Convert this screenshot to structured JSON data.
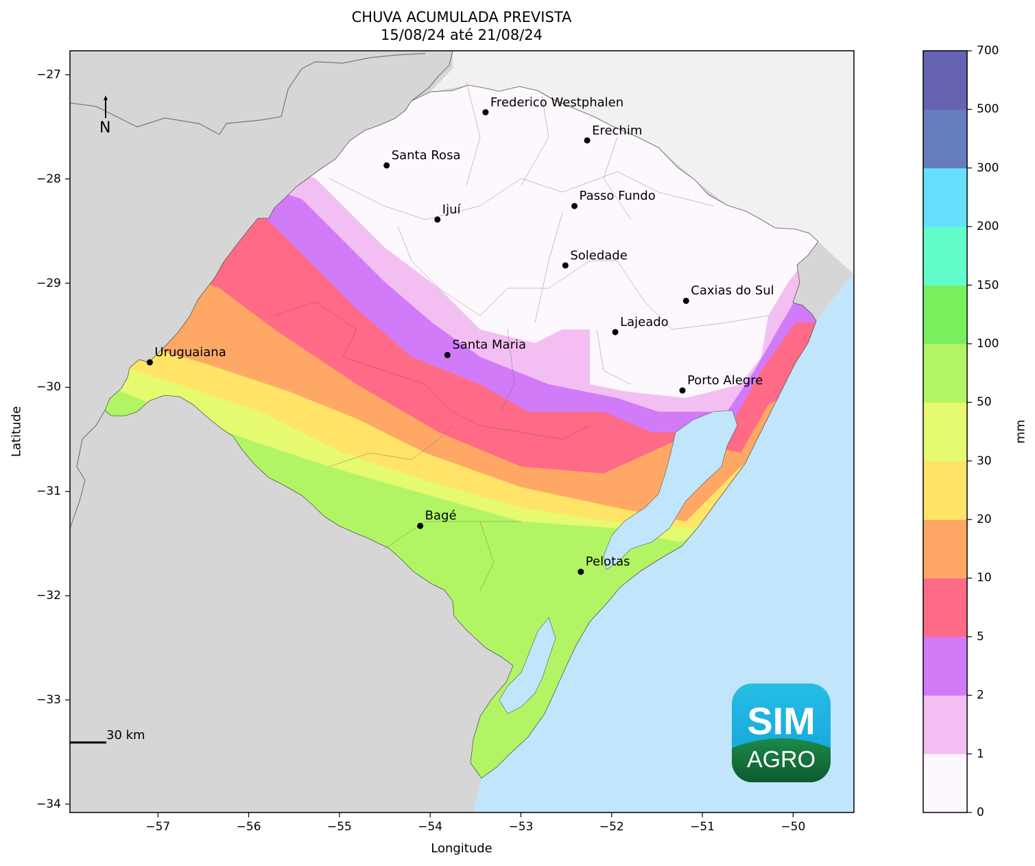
{
  "title": {
    "line1": "CHUVA ACUMULADA PREVISTA",
    "line2": "15/08/24 até 21/08/24"
  },
  "axes": {
    "xlabel": "Longitude",
    "ylabel": "Latitude",
    "xticks": [
      "−57",
      "−56",
      "−55",
      "−54",
      "−53",
      "−52",
      "−51",
      "−50"
    ],
    "yticks": [
      "−27",
      "−28",
      "−29",
      "−30",
      "−31",
      "−32",
      "−33",
      "−34"
    ],
    "xlim": [
      -57.97,
      -49.33
    ],
    "ylim": [
      -34.08,
      -26.77
    ]
  },
  "colorbar": {
    "label": "mm",
    "ticks": [
      "0",
      "1",
      "2",
      "5",
      "10",
      "20",
      "30",
      "50",
      "100",
      "150",
      "200",
      "300",
      "500",
      "700"
    ],
    "colors": [
      "#fdf8fd",
      "#f3bff3",
      "#d17bf9",
      "#ff6a87",
      "#ffa865",
      "#ffe467",
      "#e6fa70",
      "#b1f565",
      "#7aef5e",
      "#62fdcb",
      "#66dffe",
      "#657cbd",
      "#6664b2"
    ]
  },
  "cities": [
    {
      "name": "Frederico Westphalen",
      "lon": -53.39,
      "lat": -27.36
    },
    {
      "name": "Erechim",
      "lon": -52.27,
      "lat": -27.63
    },
    {
      "name": "Santa Rosa",
      "lon": -54.48,
      "lat": -27.87
    },
    {
      "name": "Passo Fundo",
      "lon": -52.41,
      "lat": -28.26
    },
    {
      "name": "Ijuí",
      "lon": -53.92,
      "lat": -28.39
    },
    {
      "name": "Soledade",
      "lon": -52.51,
      "lat": -28.83
    },
    {
      "name": "Caxias do Sul",
      "lon": -51.18,
      "lat": -29.17
    },
    {
      "name": "Lajeado",
      "lon": -51.96,
      "lat": -29.47
    },
    {
      "name": "Uruguaiana",
      "lon": -57.09,
      "lat": -29.76
    },
    {
      "name": "Santa Maria",
      "lon": -53.81,
      "lat": -29.69
    },
    {
      "name": "Porto Alegre",
      "lon": -51.22,
      "lat": -30.03
    },
    {
      "name": "Bagé",
      "lon": -54.11,
      "lat": -31.33
    },
    {
      "name": "Pelotas",
      "lon": -52.34,
      "lat": -31.77
    }
  ],
  "compass": {
    "label": "N"
  },
  "scale_bar": {
    "label": "30 km"
  },
  "logo": {
    "line1": "SIM",
    "line2": "AGRO"
  },
  "colors": {
    "land_outside": "#d6d6d6",
    "land_north": "#f1f1f1",
    "ocean": "#c1e5fa"
  }
}
